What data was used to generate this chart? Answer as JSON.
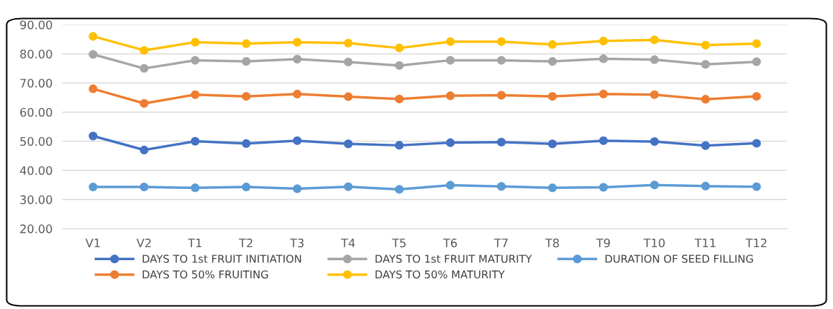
{
  "chart_data": {
    "type": "line",
    "categories": [
      "V1",
      "V2",
      "T1",
      "T2",
      "T3",
      "T4",
      "T5",
      "T6",
      "T7",
      "T8",
      "T9",
      "T10",
      "T11",
      "T12"
    ],
    "series": [
      {
        "name": "DAYS TO 1st FRUIT INITIATION",
        "color": "#4472c4",
        "values": [
          51.8,
          47.0,
          50.0,
          49.2,
          50.2,
          49.1,
          48.6,
          49.5,
          49.7,
          49.1,
          50.2,
          49.9,
          48.5,
          49.3
        ]
      },
      {
        "name": "DAYS TO 50% FRUITING",
        "color": "#ed7d31",
        "values": [
          68.0,
          63.0,
          66.0,
          65.4,
          66.2,
          65.3,
          64.5,
          65.6,
          65.8,
          65.4,
          66.2,
          66.0,
          64.4,
          65.4
        ]
      },
      {
        "name": "DAYS TO 1st FRUIT MATURITY",
        "color": "#a5a5a5",
        "values": [
          79.8,
          75.0,
          77.8,
          77.4,
          78.2,
          77.2,
          76.0,
          77.8,
          77.8,
          77.4,
          78.3,
          78.0,
          76.4,
          77.3
        ]
      },
      {
        "name": "DAYS TO 50% MATURITY",
        "color": "#ffc000",
        "values": [
          86.0,
          81.2,
          84.0,
          83.5,
          84.0,
          83.7,
          82.0,
          84.2,
          84.2,
          83.2,
          84.4,
          84.8,
          83.0,
          83.5
        ]
      },
      {
        "name": "DURATION OF SEED FILLING",
        "color": "#5b9bd5",
        "values": [
          34.3,
          34.3,
          34.0,
          34.3,
          33.7,
          34.4,
          33.5,
          34.9,
          34.5,
          34.0,
          34.2,
          35.0,
          34.6,
          34.4
        ]
      }
    ],
    "ylim": [
      20,
      90
    ],
    "yticks": [
      {
        "value": 20,
        "label": "20.00"
      },
      {
        "value": 30,
        "label": "30.00"
      },
      {
        "value": 40,
        "label": "40.00"
      },
      {
        "value": 50,
        "label": "50.00"
      },
      {
        "value": 60,
        "label": "60.00"
      },
      {
        "value": 70,
        "label": "70.00"
      },
      {
        "value": 80,
        "label": "80.00"
      },
      {
        "value": 90,
        "label": "90.00"
      }
    ],
    "grid": "y",
    "legend": "bottom",
    "marker": "circle",
    "line_style": "solid"
  }
}
